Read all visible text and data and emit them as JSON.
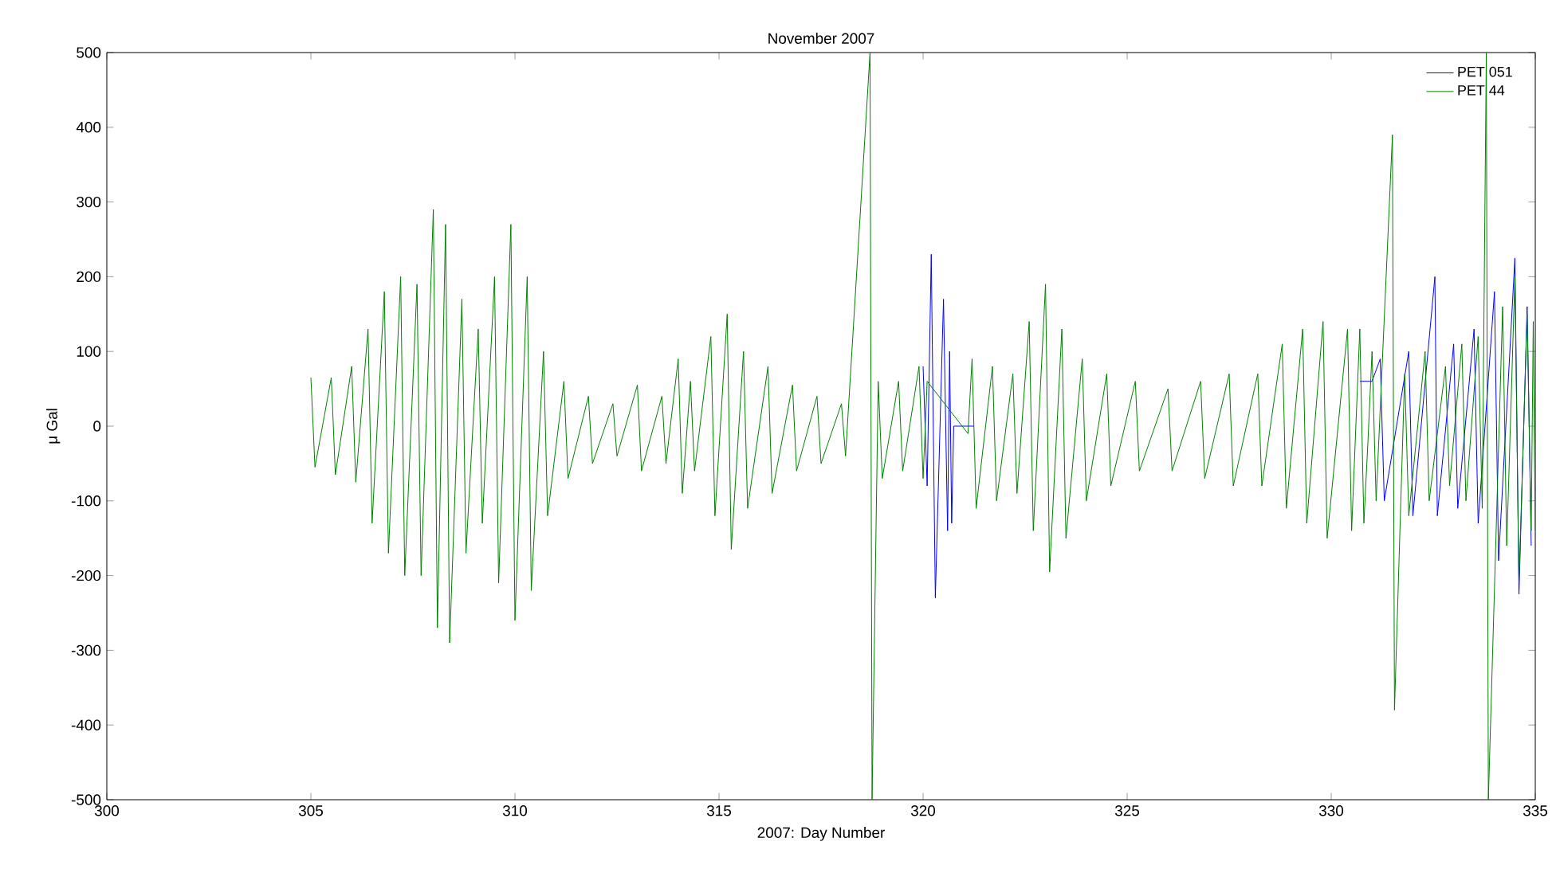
{
  "chart_data": {
    "type": "line",
    "title": "November 2007",
    "xlabel": "2007: Day Number",
    "ylabel": "μ Gal",
    "xlim": [
      300,
      335
    ],
    "ylim": [
      -500,
      500
    ],
    "xticks": [
      300,
      305,
      310,
      315,
      320,
      325,
      330,
      335
    ],
    "yticks": [
      -500,
      -400,
      -300,
      -200,
      -100,
      0,
      100,
      200,
      300,
      400,
      500
    ],
    "legend": "top right",
    "series": [
      {
        "name": "PET 051",
        "color": "#0000ff",
        "x": [
          320.0,
          320.1,
          320.2,
          320.3,
          320.5,
          320.6,
          320.65,
          320.7,
          320.75,
          321.25,
          321.3,
          330.7,
          331.0,
          331.2,
          331.3,
          331.9,
          332.0,
          332.54,
          332.6,
          333.0,
          333.1,
          333.5,
          333.6,
          334.0,
          334.1,
          334.5,
          334.6,
          334.8,
          334.9
        ],
        "values": [
          80,
          -80,
          230,
          -230,
          170,
          -140,
          100,
          -130,
          0,
          0,
          null,
          60,
          60,
          90,
          -100,
          100,
          -120,
          200,
          -120,
          110,
          -110,
          130,
          -130,
          180,
          -180,
          225,
          -225,
          160,
          -160
        ]
      },
      {
        "name": "PET 44",
        "color": "#008000",
        "x": [
          305.0,
          305.1,
          305.5,
          305.6,
          306.0,
          306.1,
          306.4,
          306.5,
          306.8,
          306.9,
          307.2,
          307.3,
          307.6,
          307.7,
          308.0,
          308.1,
          308.3,
          308.4,
          308.7,
          308.8,
          309.1,
          309.2,
          309.5,
          309.6,
          309.9,
          310.0,
          310.3,
          310.4,
          310.7,
          310.8,
          311.2,
          311.3,
          311.8,
          311.9,
          312.4,
          312.5,
          313.0,
          313.1,
          313.6,
          313.7,
          314.0,
          314.1,
          314.3,
          314.4,
          314.8,
          314.9,
          315.2,
          315.3,
          315.6,
          315.7,
          316.2,
          316.3,
          316.8,
          316.9,
          317.4,
          317.5,
          318.0,
          318.1,
          318.7,
          318.75,
          318.9,
          319.0,
          319.4,
          319.5,
          319.9,
          320.0,
          320.1,
          321.1,
          321.2,
          321.3,
          321.7,
          321.8,
          322.2,
          322.3,
          322.6,
          322.7,
          323.0,
          323.1,
          323.4,
          323.5,
          323.9,
          324.0,
          324.5,
          324.6,
          325.2,
          325.3,
          326.0,
          326.1,
          326.8,
          326.9,
          327.5,
          327.6,
          328.2,
          328.3,
          328.8,
          328.9,
          329.3,
          329.4,
          329.8,
          329.9,
          330.4,
          330.5,
          330.7,
          330.8,
          330.9,
          331.0,
          331.1,
          331.5,
          331.55,
          331.8,
          331.9,
          332.3,
          332.4,
          332.8,
          332.9,
          333.2,
          333.3,
          333.6,
          333.7,
          333.8,
          333.85,
          334.2,
          334.3,
          334.5,
          334.6,
          334.8,
          334.9,
          334.95,
          335.0
        ],
        "values": [
          65,
          -55,
          65,
          -65,
          80,
          -75,
          130,
          -130,
          180,
          -170,
          200,
          -200,
          190,
          -200,
          290,
          -270,
          270,
          -290,
          170,
          -170,
          130,
          -130,
          200,
          -210,
          270,
          -260,
          200,
          -220,
          100,
          -120,
          60,
          -70,
          40,
          -50,
          30,
          -40,
          55,
          -60,
          40,
          -50,
          90,
          -90,
          60,
          -60,
          120,
          -120,
          150,
          -165,
          100,
          -110,
          80,
          -90,
          55,
          -60,
          40,
          -50,
          30,
          -40,
          500,
          -500,
          60,
          -70,
          60,
          -60,
          80,
          -70,
          60,
          -10,
          90,
          -110,
          80,
          -100,
          70,
          -90,
          140,
          -140,
          190,
          -195,
          130,
          -150,
          90,
          -100,
          70,
          -80,
          60,
          -60,
          50,
          -60,
          60,
          -70,
          70,
          -80,
          70,
          -80,
          110,
          -110,
          130,
          -130,
          140,
          -150,
          130,
          -140,
          130,
          -130,
          -20,
          100,
          -100,
          390,
          -380,
          70,
          -120,
          100,
          -100,
          80,
          -80,
          110,
          -100,
          120,
          -110,
          500,
          -500,
          160,
          -160,
          200,
          -210,
          150,
          -140,
          140,
          -140
        ]
      }
    ]
  }
}
